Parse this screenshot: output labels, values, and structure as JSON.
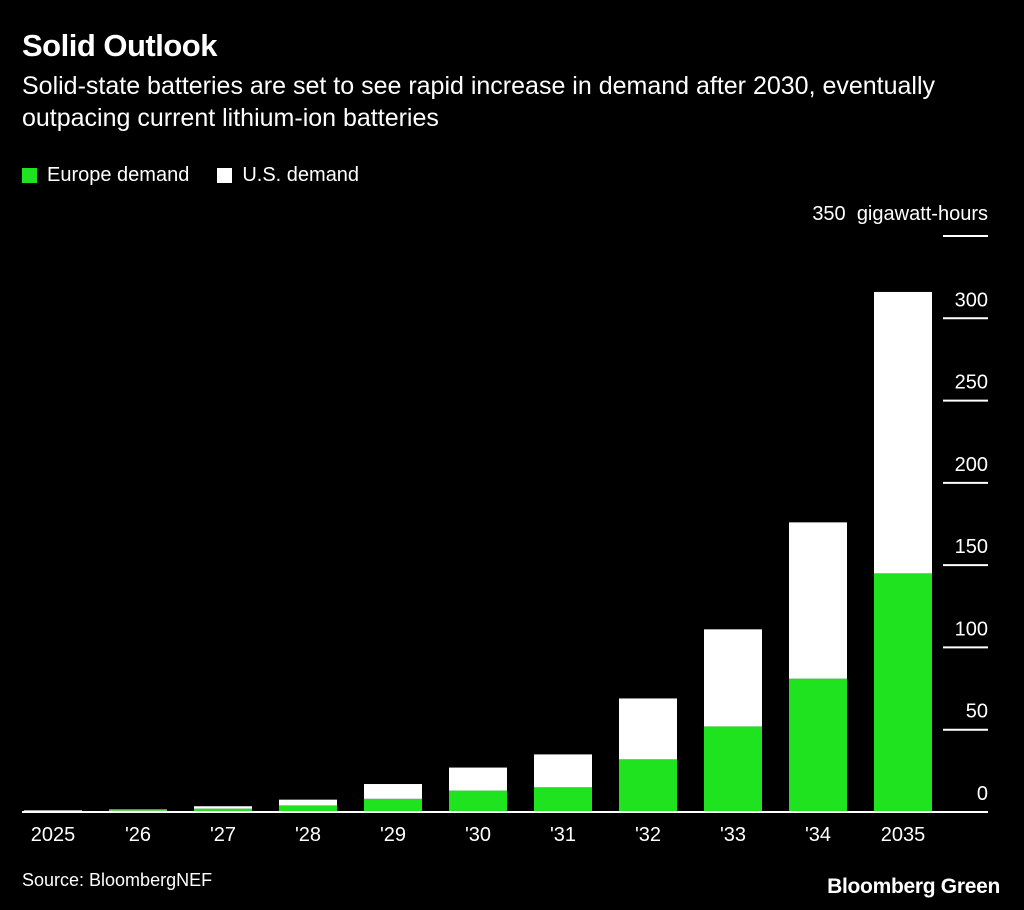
{
  "header": {
    "title": "Solid Outlook",
    "subtitle": "Solid-state batteries are set to see rapid increase in demand after 2030, eventually outpacing current lithium-ion batteries"
  },
  "legend": [
    {
      "label": "Europe demand",
      "color": "#1ee31e"
    },
    {
      "label": "U.S. demand",
      "color": "#ffffff"
    }
  ],
  "axis": {
    "top_tick": "350",
    "unit": "gigawatt-hours"
  },
  "footer": {
    "source": "Source: BloombergNEF",
    "brand": "Bloomberg Green"
  },
  "chart_data": {
    "type": "bar",
    "stacked": true,
    "categories": [
      "2025",
      "'26",
      "'27",
      "'28",
      "'29",
      "'30",
      "'31",
      "'32",
      "'33",
      "'34",
      "2035"
    ],
    "series": [
      {
        "name": "Europe demand",
        "color": "#1ee31e",
        "values": [
          0.5,
          1,
          2,
          4,
          8,
          13,
          15,
          32,
          52,
          81,
          145
        ]
      },
      {
        "name": "U.S. demand",
        "color": "#ffffff",
        "values": [
          0.5,
          0.5,
          1.5,
          3.5,
          9,
          14,
          20,
          37,
          59,
          95,
          171
        ]
      }
    ],
    "ylim": [
      0,
      350
    ],
    "yticks": [
      0,
      50,
      100,
      150,
      200,
      250,
      300,
      350
    ],
    "ylabel": "gigawatt-hours",
    "y_axis_side": "right",
    "legend_position": "top-left"
  }
}
